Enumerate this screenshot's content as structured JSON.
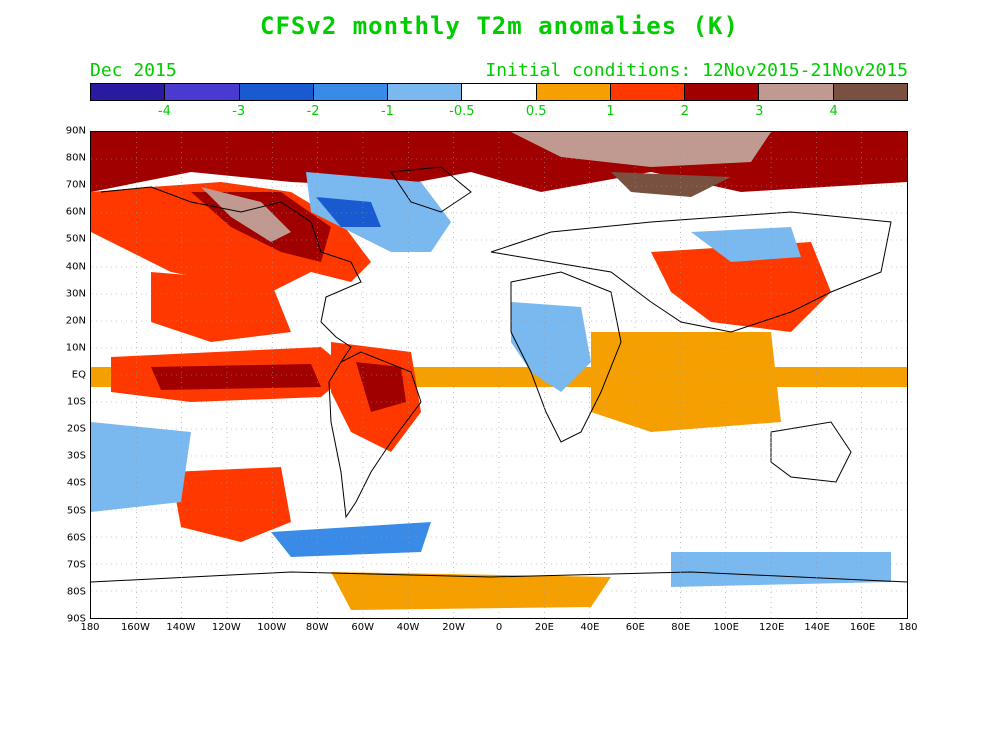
{
  "title": "CFSv2 monthly T2m anomalies (K)",
  "valid_month": "Dec 2015",
  "initial_conditions": "Initial conditions: 12Nov2015-21Nov2015",
  "colorbar": {
    "colors": [
      "#2a1aa0",
      "#4a3ad0",
      "#1a5ad0",
      "#3a8ae8",
      "#7ab8f0",
      "#ffffff",
      "#f5a000",
      "#ff3800",
      "#a00000",
      "#c09a90",
      "#7a5040"
    ],
    "labels": [
      "-4",
      "-3",
      "-2",
      "-1",
      "-0.5",
      "0.5",
      "1",
      "2",
      "3",
      "4"
    ]
  },
  "lat_labels": [
    "90N",
    "80N",
    "70N",
    "60N",
    "50N",
    "40N",
    "30N",
    "20N",
    "10N",
    "EQ",
    "10S",
    "20S",
    "30S",
    "40S",
    "50S",
    "60S",
    "70S",
    "80S",
    "90S"
  ],
  "lon_labels": [
    "180",
    "160W",
    "140W",
    "120W",
    "100W",
    "80W",
    "60W",
    "40W",
    "20W",
    "0",
    "20E",
    "40E",
    "60E",
    "80E",
    "100E",
    "120E",
    "140E",
    "160E",
    "180"
  ],
  "map": {
    "projection": "global lat-lon",
    "lon_range": [
      -180,
      180
    ],
    "lat_range": [
      -90,
      90
    ]
  }
}
